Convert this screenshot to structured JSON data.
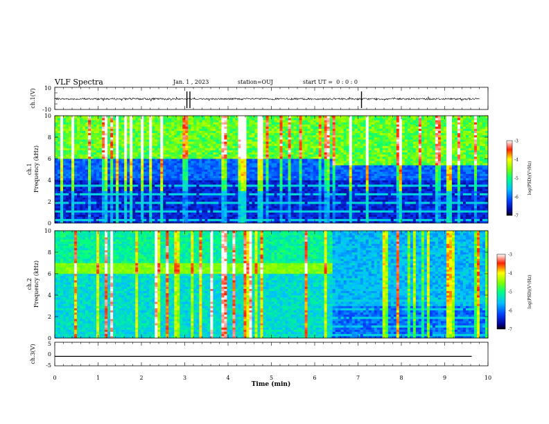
{
  "header": {
    "title": "VLF Spectra",
    "date": "Jan. 1 , 2023",
    "station": "station=OUJ",
    "start_ut": "start UT =  0 : 0 : 0"
  },
  "time_axis": {
    "xlabel": "Time (min)",
    "ticks": [
      "0",
      "1",
      "2",
      "3",
      "4",
      "5",
      "6",
      "7",
      "8",
      "9",
      "10"
    ],
    "xlim": [
      0,
      10
    ]
  },
  "chart_data": [
    {
      "type": "line",
      "ylabel": "ch.1(V)",
      "ylim": [
        -10,
        10
      ],
      "yticks": [
        "10",
        "-10"
      ],
      "description_level": -0.5,
      "series": [
        {
          "x": [
            0,
            9.8
          ],
          "y": [
            -0.5,
            -0.5
          ]
        }
      ],
      "spikes_min": [
        3.05,
        3.12,
        7.08
      ]
    },
    {
      "type": "heatmap",
      "ylabel_top": "ch.1",
      "ylabel": "Frequency (kHz)",
      "ylim": [
        0,
        10
      ],
      "yticks": [
        "0",
        "2",
        "4",
        "6",
        "8",
        "10"
      ],
      "colorbar": {
        "label": "log(PSD)(V²/Hz)",
        "ticks": [
          "-3",
          "-4",
          "-5",
          "-6",
          "-7"
        ],
        "range": [
          -7,
          -3
        ]
      },
      "band_edge_khz_before": 6.0,
      "band_edge_khz_after": 5.4,
      "change_time_min": 6.4
    },
    {
      "type": "heatmap",
      "ylabel_top": "ch.2",
      "ylabel": "Frequency (kHz)",
      "ylim": [
        0,
        10
      ],
      "yticks": [
        "0",
        "2",
        "4",
        "6",
        "8",
        "10"
      ],
      "colorbar": {
        "label": "log(PSD)(V²/Hz)",
        "ticks": [
          "-3",
          "-4",
          "-5",
          "-6",
          "-7"
        ],
        "range": [
          -7,
          -3
        ]
      },
      "emission_band_khz": [
        6.0,
        7.0
      ],
      "change_time_min": 6.4
    },
    {
      "type": "line",
      "ylabel": "ch.3(V)",
      "ylim": [
        -5,
        5
      ],
      "yticks": [
        "5",
        "0",
        "-5"
      ],
      "series": [
        {
          "x": [
            0,
            9.8
          ],
          "y": [
            -1,
            -1
          ]
        }
      ]
    }
  ]
}
